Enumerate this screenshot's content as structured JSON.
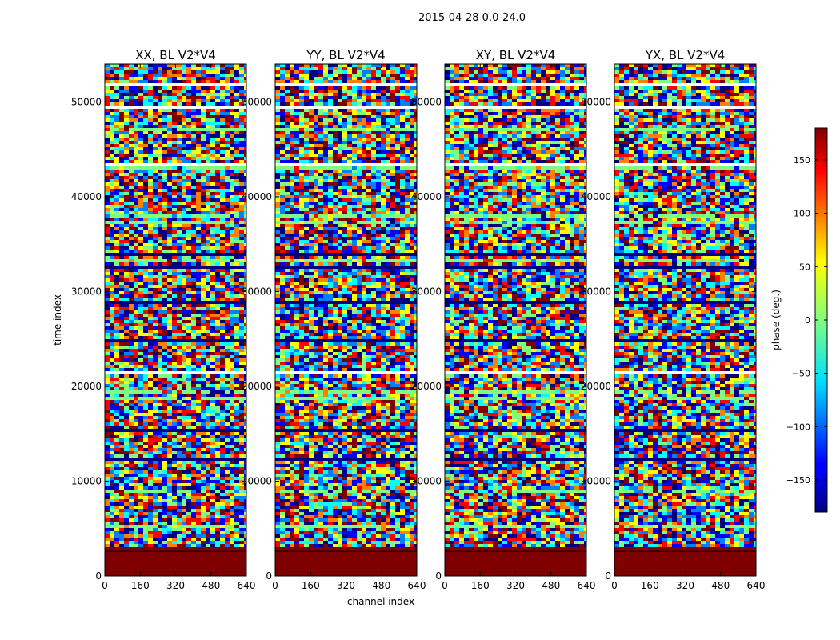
{
  "chart_data": {
    "type": "heatmap",
    "suptitle": "2015-04-28 0.0-24.0",
    "xlabel": "channel index",
    "ylabel": "time index",
    "xlim": [
      0,
      640
    ],
    "ylim": [
      0,
      54000
    ],
    "xticks": [
      0,
      160,
      320,
      480,
      640
    ],
    "yticks": [
      0,
      10000,
      20000,
      30000,
      40000,
      50000
    ],
    "colorbar": {
      "label": "phase (deg.)",
      "range": [
        -180,
        180
      ],
      "ticks": [
        -150,
        -100,
        -50,
        0,
        50,
        100,
        150
      ],
      "ticklabels": [
        "−150",
        "−100",
        "−50",
        "0",
        "50",
        "100",
        "150"
      ],
      "colormap": "jet"
    },
    "panels": [
      {
        "title": "XX, BL V2*V4",
        "pol": "XX"
      },
      {
        "title": "YY, BL V2*V4",
        "pol": "YY"
      },
      {
        "title": "XY, BL V2*V4",
        "pol": "XY"
      },
      {
        "title": "YX, BL V2*V4",
        "pol": "YX"
      }
    ],
    "flagged_region": {
      "time_start": 0,
      "time_end": 3300,
      "phase": 180
    }
  },
  "colors": {
    "jet": [
      "#00007f",
      "#0000ff",
      "#007fff",
      "#00ffff",
      "#7fff7f",
      "#ffff00",
      "#ff7f00",
      "#ff0000",
      "#7f0000"
    ],
    "axis": "#000000"
  }
}
